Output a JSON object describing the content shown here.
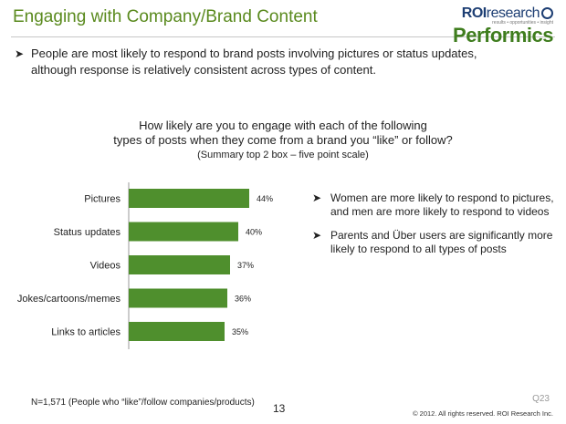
{
  "title": "Engaging with Company/Brand Content",
  "logo": {
    "roi": "ROI",
    "research": "research",
    "tagline": "results • opportunities • insight",
    "performics": "Performics"
  },
  "intro": "People are most likely to respond to brand posts involving pictures or status updates, although response is relatively consistent across types of content.",
  "question": {
    "line1": "How likely are you to engage with each of the following",
    "line2": "types of posts when they come from a brand you “like” or follow?",
    "sub": "(Summary top 2 box – five point scale)"
  },
  "chart_data": {
    "type": "bar",
    "orientation": "horizontal",
    "categories": [
      "Pictures",
      "Status updates",
      "Videos",
      "Jokes/cartoons/memes",
      "Links to articles"
    ],
    "values": [
      44,
      40,
      37,
      36,
      35
    ],
    "data_labels": [
      "44%",
      "40%",
      "37%",
      "36%",
      "35%"
    ],
    "bar_color": "#4f8f2d",
    "grid": false
  },
  "notes": [
    "Women are more likely to respond to pictures, and men are more likely to respond to videos",
    "Parents and Über users are significantly more likely to respond to all types of posts"
  ],
  "footnote": "N=1,571 (People who “like”/follow companies/products)",
  "page_number": "13",
  "question_ref": "Q23",
  "copyright": "© 2012. All rights reserved. ROI Research Inc."
}
